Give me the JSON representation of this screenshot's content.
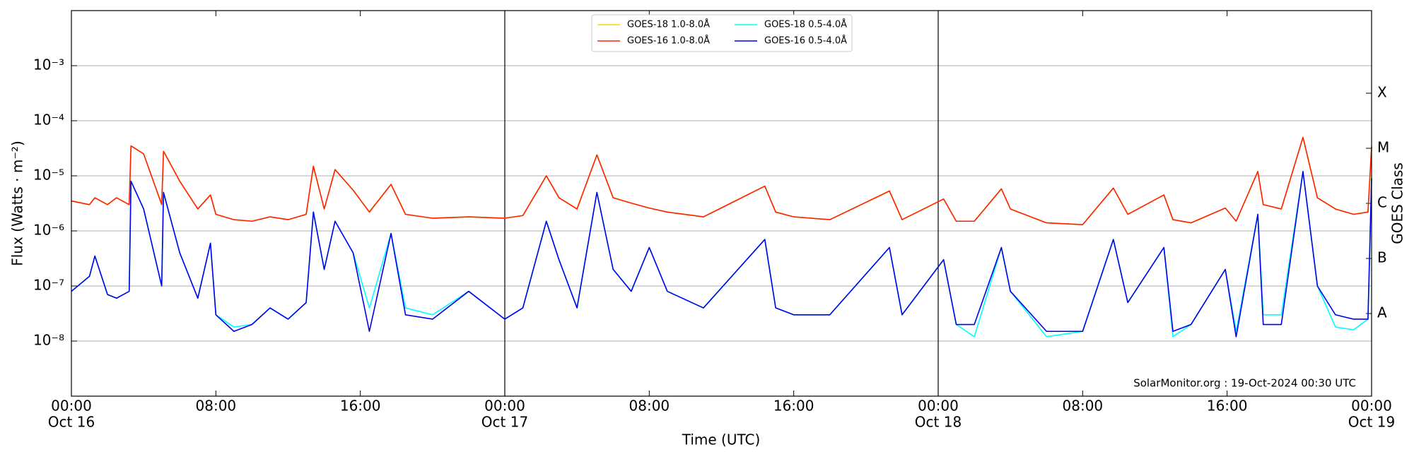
{
  "chart_data": {
    "type": "line",
    "xlabel": "Time (UTC)",
    "ylabel": "Flux (Watts · m⁻²)",
    "y2label": "GOES Class",
    "annotation": "SolarMonitor.org : 19-Oct-2024 00:30 UTC",
    "log_y": true,
    "grid": true,
    "legend": "upper center",
    "xlim": [
      0,
      72
    ],
    "xticks": [
      {
        "value": 0,
        "label": "00:00",
        "sublabel": "Oct 16"
      },
      {
        "value": 8,
        "label": "08:00"
      },
      {
        "value": 16,
        "label": "16:00"
      },
      {
        "value": 24,
        "label": "00:00",
        "sublabel": "Oct 17"
      },
      {
        "value": 32,
        "label": "08:00"
      },
      {
        "value": 40,
        "label": "16:00"
      },
      {
        "value": 48,
        "label": "00:00",
        "sublabel": "Oct 18"
      },
      {
        "value": 56,
        "label": "08:00"
      },
      {
        "value": 64,
        "label": "16:00"
      },
      {
        "value": 72,
        "label": "00:00",
        "sublabel": "Oct 19"
      }
    ],
    "ylim": [
      1e-09,
      0.01
    ],
    "yticks": [
      {
        "value": 1e-08,
        "label": "10⁻⁸"
      },
      {
        "value": 1e-07,
        "label": "10⁻⁷"
      },
      {
        "value": 1e-06,
        "label": "10⁻⁶"
      },
      {
        "value": 1e-05,
        "label": "10⁻⁵"
      },
      {
        "value": 0.0001,
        "label": "10⁻⁴"
      },
      {
        "value": 0.001,
        "label": "10⁻³"
      }
    ],
    "y2lim": [
      1e-09,
      0.01
    ],
    "y2ticks": [
      {
        "value": 3.16e-08,
        "label": "A"
      },
      {
        "value": 3.16e-07,
        "label": "B"
      },
      {
        "value": 3.16e-06,
        "label": "C"
      },
      {
        "value": 3.16e-05,
        "label": "M"
      },
      {
        "value": 0.000316,
        "label": "X"
      }
    ],
    "vlines": [
      24,
      48
    ],
    "x": [
      0,
      1,
      1.3,
      2,
      2.5,
      3.2,
      3.3,
      4,
      5,
      5.1,
      6,
      7,
      7.7,
      8,
      9,
      10,
      11,
      12,
      13,
      13.4,
      14,
      14.6,
      15.6,
      16.5,
      17.7,
      18.5,
      20,
      22,
      24,
      25,
      26.3,
      27,
      28,
      29.1,
      30,
      31,
      32,
      33,
      35,
      38.4,
      39,
      40,
      42,
      45.3,
      46,
      48.3,
      49,
      50,
      51.5,
      52,
      54,
      56,
      57.7,
      58.5,
      60.5,
      61,
      62,
      63.9,
      64.5,
      65.7,
      66,
      67,
      68.2,
      69,
      70,
      71,
      71.8,
      72
    ],
    "series": [
      {
        "name": "GOES-18 1.0-8.0Å",
        "color": "#ffd700",
        "values": [
          3.5e-06,
          3e-06,
          4e-06,
          3e-06,
          4e-06,
          3e-06,
          3.5e-05,
          2.5e-05,
          3e-06,
          2.8e-05,
          8e-06,
          2.5e-06,
          4.5e-06,
          2e-06,
          1.6e-06,
          1.5e-06,
          1.8e-06,
          1.6e-06,
          2e-06,
          1.5e-05,
          2.5e-06,
          1.3e-05,
          5.5e-06,
          2.2e-06,
          7e-06,
          2e-06,
          1.7e-06,
          1.8e-06,
          1.7e-06,
          1.9e-06,
          1e-05,
          4e-06,
          2.5e-06,
          2.4e-05,
          4e-06,
          3.2e-06,
          2.6e-06,
          2.2e-06,
          1.8e-06,
          6.5e-06,
          2.2e-06,
          1.8e-06,
          1.6e-06,
          5.3e-06,
          1.6e-06,
          3.8e-06,
          1.5e-06,
          1.5e-06,
          5.8e-06,
          2.5e-06,
          1.4e-06,
          1.3e-06,
          6e-06,
          2e-06,
          4.5e-06,
          1.6e-06,
          1.4e-06,
          2.6e-06,
          1.5e-06,
          1.2e-05,
          3e-06,
          2.5e-06,
          5e-05,
          4e-06,
          2.5e-06,
          2e-06,
          2.2e-06,
          3.4e-05
        ]
      },
      {
        "name": "GOES-16 1.0-8.0Å",
        "color": "#ff2000",
        "values": [
          3.5e-06,
          3e-06,
          4e-06,
          3e-06,
          4e-06,
          3e-06,
          3.5e-05,
          2.5e-05,
          3e-06,
          2.8e-05,
          8e-06,
          2.5e-06,
          4.5e-06,
          2e-06,
          1.6e-06,
          1.5e-06,
          1.8e-06,
          1.6e-06,
          2e-06,
          1.5e-05,
          2.5e-06,
          1.3e-05,
          5.5e-06,
          2.2e-06,
          7e-06,
          2e-06,
          1.7e-06,
          1.8e-06,
          1.7e-06,
          1.9e-06,
          1e-05,
          4e-06,
          2.5e-06,
          2.4e-05,
          4e-06,
          3.2e-06,
          2.6e-06,
          2.2e-06,
          1.8e-06,
          6.5e-06,
          2.2e-06,
          1.8e-06,
          1.6e-06,
          5.3e-06,
          1.6e-06,
          3.8e-06,
          1.5e-06,
          1.5e-06,
          5.8e-06,
          2.5e-06,
          1.4e-06,
          1.3e-06,
          6e-06,
          2e-06,
          4.5e-06,
          1.6e-06,
          1.4e-06,
          2.6e-06,
          1.5e-06,
          1.2e-05,
          3e-06,
          2.5e-06,
          5e-05,
          4e-06,
          2.5e-06,
          2e-06,
          2.2e-06,
          3.4e-05
        ]
      },
      {
        "name": "GOES-18 0.5-4.0Å",
        "color": "#00ffff",
        "values": [
          8e-08,
          1.5e-07,
          3.5e-07,
          7e-08,
          6e-08,
          8e-08,
          8e-06,
          2.5e-06,
          1e-07,
          5e-06,
          4e-07,
          6e-08,
          6e-07,
          3e-08,
          1.8e-08,
          2e-08,
          4e-08,
          2.5e-08,
          5e-08,
          2.2e-06,
          2e-07,
          1.5e-06,
          4e-07,
          4e-08,
          9e-07,
          4e-08,
          3e-08,
          8e-08,
          2.5e-08,
          4e-08,
          1.5e-06,
          3e-07,
          4e-08,
          5e-06,
          2e-07,
          8e-08,
          5e-07,
          8e-08,
          4e-08,
          7e-07,
          4e-08,
          3e-08,
          3e-08,
          5e-07,
          3e-08,
          3e-07,
          2e-08,
          1.2e-08,
          5e-07,
          8e-08,
          1.2e-08,
          1.5e-08,
          7e-07,
          5e-08,
          5e-07,
          1.2e-08,
          2e-08,
          2e-07,
          1.5e-08,
          2e-06,
          3e-08,
          3e-08,
          1.2e-05,
          1e-07,
          1.8e-08,
          1.6e-08,
          2.5e-08,
          9e-06
        ]
      },
      {
        "name": "GOES-16 0.5-4.0Å",
        "color": "#0000ee",
        "values": [
          8e-08,
          1.5e-07,
          3.5e-07,
          7e-08,
          6e-08,
          8e-08,
          8e-06,
          2.5e-06,
          1e-07,
          5e-06,
          4e-07,
          6e-08,
          6e-07,
          3e-08,
          1.5e-08,
          2e-08,
          4e-08,
          2.5e-08,
          5e-08,
          2.2e-06,
          2e-07,
          1.5e-06,
          4e-07,
          1.5e-08,
          9e-07,
          3e-08,
          2.5e-08,
          8e-08,
          2.5e-08,
          4e-08,
          1.5e-06,
          3e-07,
          4e-08,
          5e-06,
          2e-07,
          8e-08,
          5e-07,
          8e-08,
          4e-08,
          7e-07,
          4e-08,
          3e-08,
          3e-08,
          5e-07,
          3e-08,
          3e-07,
          2e-08,
          2e-08,
          5e-07,
          8e-08,
          1.5e-08,
          1.5e-08,
          7e-07,
          5e-08,
          5e-07,
          1.5e-08,
          2e-08,
          2e-07,
          1.2e-08,
          2e-06,
          2e-08,
          2e-08,
          1.2e-05,
          1e-07,
          3e-08,
          2.5e-08,
          2.5e-08,
          9e-06
        ]
      }
    ]
  }
}
